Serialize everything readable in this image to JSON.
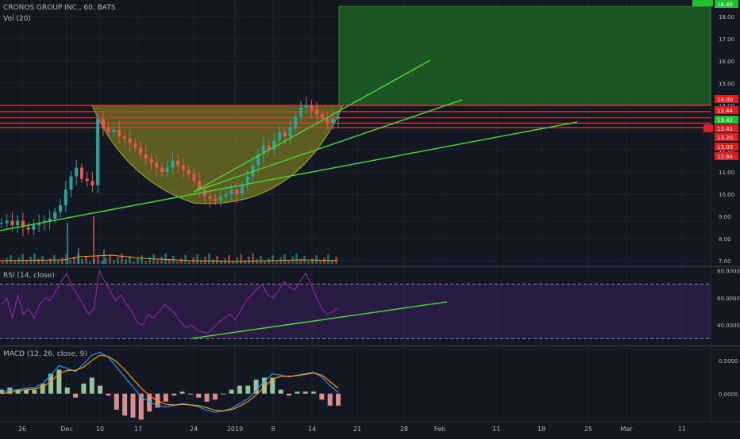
{
  "header": {
    "symbol": "CRONOS GROUP INC., 60, BATS",
    "volume": "Vol (20)"
  },
  "rsi_panel": {
    "label": "RSI (14, close)"
  },
  "macd_panel": {
    "label": "MACD (12, 26, close, 9)"
  },
  "colors": {
    "background": "#131722",
    "grid": "#1f2330",
    "up": "#26a69a",
    "down": "#ef5350",
    "target_zone": "#1f6b24",
    "cup": "#8a8a20",
    "trendline": "#4cd137",
    "resistance": "#e53935",
    "rsi_line": "#9c27b0",
    "macd_line": "#2196f3",
    "signal_line": "#ff9800"
  },
  "chart_data": [
    {
      "type": "candlestick",
      "panel": "price",
      "y_ticks": [
        "18.00",
        "17.00",
        "16.00",
        "15.00",
        "14.00",
        "13.00",
        "12.00",
        "11.00",
        "10.00",
        "9.00",
        "8.00",
        "7.00"
      ],
      "ylim": [
        6.75,
        18.75
      ],
      "x_ticks": [
        "26",
        "Dec",
        "10",
        "17",
        "24",
        "2019",
        "8",
        "14",
        "21",
        "28",
        "Feb",
        "11",
        "18",
        "25",
        "Mar",
        "11"
      ],
      "price_tags": [
        {
          "value": "18.46",
          "color": "green"
        },
        {
          "value": "14.00",
          "color": "red"
        },
        {
          "value": "13.44",
          "color": "red"
        },
        {
          "value": "13.42",
          "color": "green"
        },
        {
          "value": "13.41",
          "color": "red"
        },
        {
          "value": "13.20",
          "color": "red"
        },
        {
          "value": "13.00",
          "color": "red"
        },
        {
          "value": "12.84",
          "color": "red"
        }
      ],
      "resistance_levels": [
        14.0,
        13.72,
        13.44,
        13.2,
        13.0
      ],
      "target_zone": {
        "from": 14.0,
        "to": 18.46
      },
      "series": [
        {
          "name": "Price",
          "values": [
            8.7,
            8.8,
            8.6,
            8.8,
            8.5,
            8.4,
            8.6,
            8.7,
            8.8,
            8.9,
            9.2,
            9.5,
            10.2,
            10.8,
            11.2,
            10.7,
            10.6,
            10.4,
            13.4,
            13.0,
            12.8,
            12.9,
            12.6,
            12.5,
            12.3,
            12.1,
            11.8,
            11.6,
            11.4,
            11.2,
            11.0,
            11.2,
            11.5,
            11.3,
            11.1,
            10.9,
            10.6,
            10.2,
            9.9,
            9.8,
            9.7,
            9.9,
            10.0,
            10.2,
            10.0,
            10.4,
            10.8,
            11.3,
            11.8,
            12.2,
            12.0,
            12.4,
            12.8,
            12.6,
            13.0,
            13.5,
            13.9,
            14.0,
            13.8,
            13.6,
            13.4,
            13.2,
            13.4,
            13.5
          ]
        }
      ],
      "trendlines": [
        {
          "from": [
            "Nov 26",
            8.3
          ],
          "to": [
            "Feb 23",
            13.1
          ]
        },
        {
          "from": [
            "Dec 24",
            9.6
          ],
          "to": [
            "Feb 01",
            13.95
          ]
        },
        {
          "from": [
            "Dec 24",
            9.6
          ],
          "to": [
            "Jan 31",
            15.5
          ]
        }
      ]
    },
    {
      "type": "line",
      "panel": "rsi",
      "y_ticks": [
        "80.0000",
        "60.0000",
        "40.0000"
      ],
      "ylim": [
        25,
        82
      ],
      "bands": [
        70,
        30
      ],
      "series": [
        {
          "name": "RSI",
          "values": [
            55,
            60,
            45,
            62,
            48,
            52,
            45,
            55,
            60,
            58,
            65,
            72,
            78,
            68,
            62,
            55,
            48,
            52,
            80,
            72,
            65,
            58,
            62,
            55,
            50,
            42,
            40,
            48,
            45,
            50,
            55,
            52,
            48,
            42,
            38,
            40,
            36,
            35,
            34,
            38,
            42,
            45,
            48,
            44,
            50,
            58,
            62,
            66,
            70,
            62,
            60,
            65,
            72,
            68,
            66,
            72,
            78,
            70,
            60,
            52,
            48,
            50,
            52
          ]
        }
      ]
    },
    {
      "type": "bar_line",
      "panel": "macd",
      "y_ticks": [
        "0.5000",
        "0.0000"
      ],
      "ylim": [
        -0.42,
        0.7
      ],
      "series": [
        {
          "name": "MACD",
          "values": [
            0.02,
            0.05,
            0.06,
            0.08,
            0.09,
            0.15,
            0.28,
            0.42,
            0.38,
            0.33,
            0.45,
            0.58,
            0.62,
            0.55,
            0.4,
            0.25,
            0.1,
            -0.05,
            -0.12,
            -0.18,
            -0.2,
            -0.18,
            -0.15,
            -0.17,
            -0.2,
            -0.25,
            -0.28,
            -0.26,
            -0.22,
            -0.15,
            -0.08,
            0.05,
            0.18,
            0.3,
            0.28,
            0.25,
            0.28,
            0.3,
            0.32,
            0.25,
            0.12,
            0.02
          ]
        },
        {
          "name": "Signal",
          "values": [
            0.0,
            0.02,
            0.04,
            0.06,
            0.07,
            0.1,
            0.18,
            0.3,
            0.35,
            0.35,
            0.4,
            0.5,
            0.58,
            0.56,
            0.48,
            0.36,
            0.22,
            0.08,
            -0.03,
            -0.11,
            -0.16,
            -0.17,
            -0.16,
            -0.17,
            -0.18,
            -0.21,
            -0.25,
            -0.26,
            -0.24,
            -0.19,
            -0.12,
            -0.02,
            0.1,
            0.22,
            0.26,
            0.26,
            0.27,
            0.29,
            0.31,
            0.28,
            0.18,
            0.08
          ]
        }
      ]
    }
  ]
}
